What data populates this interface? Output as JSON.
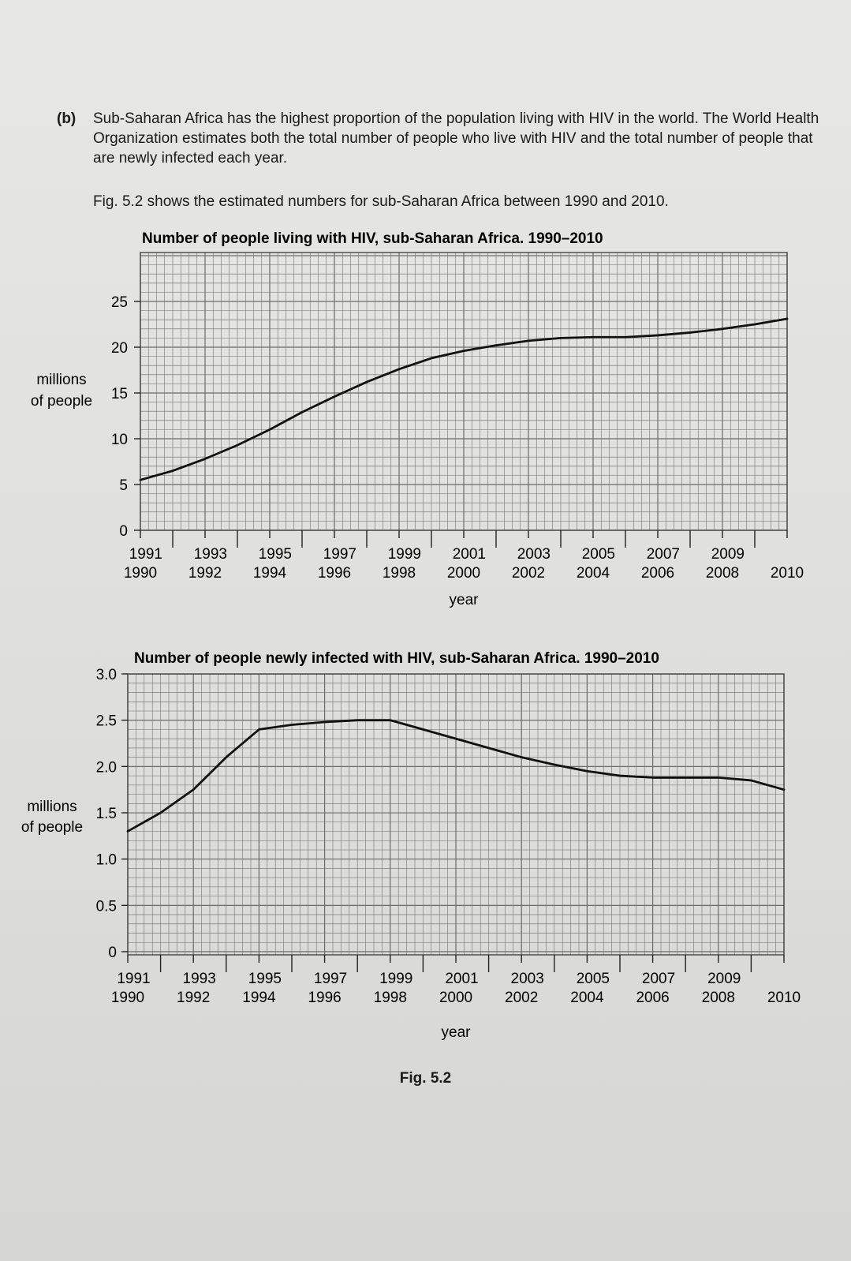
{
  "question": {
    "part_label": "(b)",
    "intro_text": "Sub-Saharan Africa has the highest proportion of the population living with HIV in the world. The World Health Organization estimates both the total number of people who live with HIV and the total number of people that are newly infected each year.",
    "figure_ref_text": "Fig. 5.2 shows the estimated numbers for sub-Saharan Africa between 1990 and 2010."
  },
  "figure_caption": "Fig. 5.2",
  "chart_data": [
    {
      "type": "line",
      "title": "Number of people living with HIV, sub-Saharan Africa. 1990–2010",
      "xlabel": "year",
      "ylabel_lines": [
        "millions",
        "of people"
      ],
      "xlim": [
        1990,
        2010
      ],
      "ylim": [
        0,
        25
      ],
      "y_ticks": [
        "0",
        "5",
        "10",
        "15",
        "20",
        "25"
      ],
      "x_ticks_odd": [
        "1991",
        "1993",
        "1995",
        "1997",
        "1999",
        "2001",
        "2003",
        "2005",
        "2007",
        "2009"
      ],
      "x_ticks_even": [
        "1990",
        "1992",
        "1994",
        "1996",
        "1998",
        "2000",
        "2002",
        "2004",
        "2006",
        "2008",
        "2010"
      ],
      "grid": true,
      "x": [
        1990,
        1991,
        1992,
        1993,
        1994,
        1995,
        1996,
        1997,
        1998,
        1999,
        2000,
        2001,
        2002,
        2003,
        2004,
        2005,
        2006,
        2007,
        2008,
        2009,
        2010
      ],
      "series": [
        {
          "values": [
            5.5,
            6.5,
            7.8,
            9.3,
            11.0,
            12.9,
            14.6,
            16.2,
            17.6,
            18.8,
            19.6,
            20.2,
            20.7,
            21.0,
            21.1,
            21.1,
            21.3,
            21.6,
            22.0,
            22.5,
            23.1
          ]
        }
      ]
    },
    {
      "type": "line",
      "title": "Number of people newly infected with HIV, sub-Saharan Africa. 1990–2010",
      "xlabel": "year",
      "ylabel_lines": [
        "millions",
        "of people"
      ],
      "xlim": [
        1990,
        2010
      ],
      "ylim": [
        0,
        3.0
      ],
      "y_ticks": [
        "0",
        "0.5",
        "1.0",
        "1.5",
        "2.0",
        "2.5",
        "3.0"
      ],
      "x_ticks_odd": [
        "1991",
        "1993",
        "1995",
        "1997",
        "1999",
        "2001",
        "2003",
        "2005",
        "2007",
        "2009"
      ],
      "x_ticks_even": [
        "1990",
        "1992",
        "1994",
        "1996",
        "1998",
        "2000",
        "2002",
        "2004",
        "2006",
        "2008",
        "2010"
      ],
      "grid": true,
      "x": [
        1990,
        1991,
        1992,
        1993,
        1994,
        1995,
        1996,
        1997,
        1998,
        1999,
        2000,
        2001,
        2002,
        2003,
        2004,
        2005,
        2006,
        2007,
        2008,
        2009,
        2010
      ],
      "series": [
        {
          "values": [
            1.3,
            1.5,
            1.75,
            2.1,
            2.4,
            2.45,
            2.48,
            2.5,
            2.5,
            2.4,
            2.3,
            2.2,
            2.1,
            2.02,
            1.95,
            1.9,
            1.88,
            1.88,
            1.88,
            1.85,
            1.75
          ]
        }
      ]
    }
  ]
}
